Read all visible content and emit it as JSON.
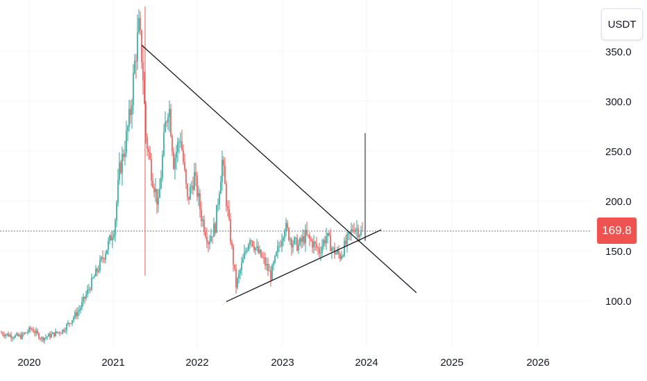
{
  "unit_label": "USDT",
  "last_price_label": "169.8",
  "colors": {
    "up": "#26a69a",
    "down": "#ef5350",
    "price_line": "#ef5350",
    "trendline": "#131722"
  },
  "chart_data": {
    "type": "candlestick",
    "x_ticks": [
      "2020",
      "2021",
      "2022",
      "2023",
      "2024",
      "2025",
      "2026"
    ],
    "y_ticks": [
      "100.0",
      "150.0",
      "200.0",
      "250.0",
      "300.0",
      "350.0"
    ],
    "ylim": [
      60,
      380
    ],
    "xlim": [
      "2019-10",
      "2026-12"
    ],
    "last_price": 169.8,
    "annotations": [
      {
        "type": "trendline",
        "from": [
          "2021-05",
          356
        ],
        "to": [
          "2024-08",
          108
        ]
      },
      {
        "type": "trendline",
        "from": [
          "2022-05",
          99
        ],
        "to": [
          "2024-03",
          171
        ]
      }
    ]
  }
}
